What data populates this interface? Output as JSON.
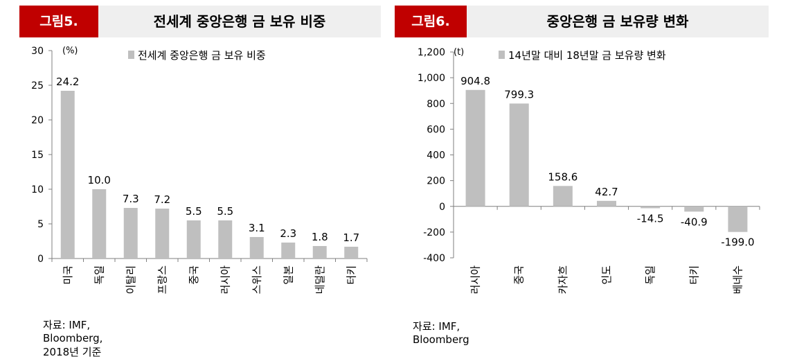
{
  "figures": [
    {
      "tag": "그림5.",
      "title": "전세계 중앙은행 금 보유 비중",
      "source": "자료: IMF, Bloomberg, 2018년 기준",
      "chart_data": {
        "type": "bar",
        "unit": "(%)",
        "legend": "전세계 중앙은행 금 보유 비중",
        "legend_position": "top",
        "categories": [
          "미국",
          "독일",
          "이탈리",
          "프랑스",
          "중국",
          "러시아",
          "스위스",
          "일본",
          "네덜란",
          "터키"
        ],
        "values": [
          24.2,
          10.0,
          7.3,
          7.2,
          5.5,
          5.5,
          3.1,
          2.3,
          1.8,
          1.7
        ],
        "data_labels": [
          "24.2",
          "10.0",
          "7.3",
          "7.2",
          "5.5",
          "5.5",
          "3.1",
          "2.3",
          "1.8",
          "1.7"
        ],
        "yticks": [
          "0",
          "5",
          "10",
          "15",
          "20",
          "25",
          "30"
        ],
        "ytick_values": [
          0,
          5,
          10,
          15,
          20,
          25,
          30
        ],
        "ylim": [
          0,
          30
        ],
        "grid": false,
        "bar_color": "#bfbfbf"
      }
    },
    {
      "tag": "그림6.",
      "title": "중앙은행 금 보유량 변화",
      "source": "자료: IMF, Bloomberg",
      "chart_data": {
        "type": "bar",
        "unit": "(t)",
        "legend": "14년말 대비 18년말 금 보유량 변화",
        "legend_position": "top",
        "categories": [
          "러시아",
          "중국",
          "카자흐",
          "인도",
          "독일",
          "터키",
          "베네수"
        ],
        "values": [
          904.8,
          799.3,
          158.6,
          42.7,
          -14.5,
          -40.9,
          -199.0
        ],
        "data_labels": [
          "904.8",
          "799.3",
          "158.6",
          "42.7",
          "-14.5",
          "-40.9",
          "-199.0"
        ],
        "yticks": [
          "-400",
          "-200",
          "0",
          "200",
          "400",
          "600",
          "800",
          "1,000",
          "1,200"
        ],
        "ytick_values": [
          -400,
          -200,
          0,
          200,
          400,
          600,
          800,
          1000,
          1200
        ],
        "ylim": [
          -400,
          1200
        ],
        "grid": false,
        "bar_color": "#bfbfbf"
      }
    }
  ]
}
